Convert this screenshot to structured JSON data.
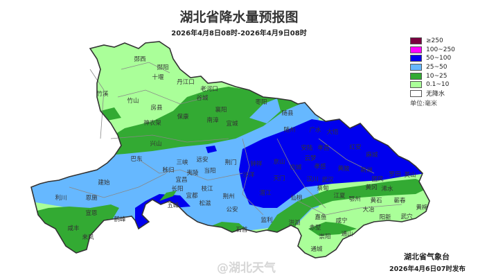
{
  "title": "湖北省降水量预报图",
  "subtitle": "2026年4月8日08时-2026年4月9日08时",
  "legend": {
    "items": [
      {
        "label": "≥250",
        "color": "#7a0040"
      },
      {
        "label": "100~250",
        "color": "#ff00ff"
      },
      {
        "label": "50~100",
        "color": "#0000ee"
      },
      {
        "label": "25~50",
        "color": "#66b8ff"
      },
      {
        "label": "10~25",
        "color": "#33aa33"
      },
      {
        "label": "0.1~10",
        "color": "#aaff99"
      },
      {
        "label": "无降水",
        "color": "#ffffff"
      }
    ],
    "unit": "单位:毫米"
  },
  "agency": "湖北省气象台",
  "issued": "2026年4月6日07时发布",
  "watermark": "@湖北天气",
  "places": [
    "郧西",
    "郧阳",
    "十堰",
    "丹江口",
    "老河口",
    "谷城",
    "竹溪",
    "竹山",
    "房县",
    "保康",
    "南漳",
    "宜城",
    "襄阳",
    "神农架",
    "兴山",
    "枣阳",
    "随县",
    "随州",
    "广水",
    "大悟",
    "红安",
    "麻城",
    "孝昌",
    "安陆",
    "云梦",
    "应城",
    "京山",
    "钟祥",
    "沙洋",
    "天门",
    "潜江",
    "仙桃",
    "汉川",
    "武汉",
    "孝感",
    "黄陂",
    "新洲",
    "罗田",
    "英山",
    "团风",
    "黄冈",
    "浠水",
    "蕲春",
    "黄梅",
    "武穴",
    "阳新",
    "大冶",
    "黄石",
    "鄂州",
    "江夏",
    "嘉鱼",
    "赤壁",
    "咸宁",
    "崇阳",
    "通山",
    "通城",
    "洪湖",
    "监利",
    "石首",
    "公安",
    "荆州",
    "荆门",
    "当阳",
    "远安",
    "宜昌",
    "夷陵",
    "三峡",
    "秭归",
    "巴东",
    "长阳",
    "宜都",
    "枝江",
    "松滋",
    "五峰",
    "建始",
    "恩施",
    "利川",
    "宣恩",
    "鹤峰",
    "咸丰",
    "来凤",
    "蔡甸"
  ]
}
